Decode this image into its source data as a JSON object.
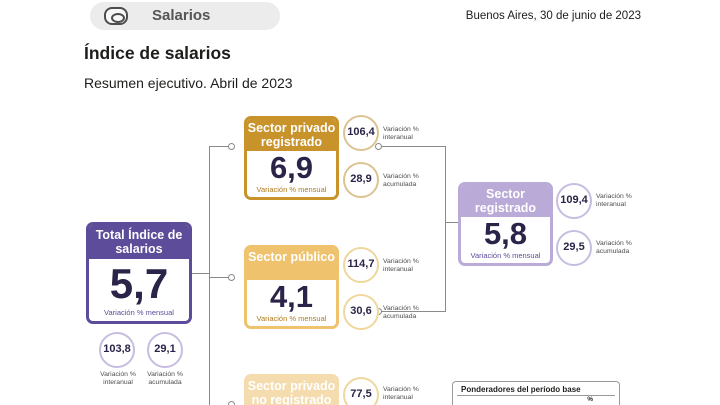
{
  "header": {
    "section_label": "Salarios",
    "section_icon": "money-icon",
    "date": "Buenos Aires, 30 de junio de 2023"
  },
  "title": "Índice de salarios",
  "subtitle": "Resumen ejecutivo. Abril de 2023",
  "total": {
    "title": "Total Índice de salarios",
    "value": "5,7",
    "caption": "Variación % mensual",
    "interanual": "103,8",
    "interanual_label": "Variación % interanual",
    "acumulada": "29,1",
    "acumulada_label": "Variación % acumulada",
    "color": "#5d4c9a"
  },
  "privado": {
    "title": "Sector privado registrado",
    "value": "6,9",
    "caption": "Variación % mensual",
    "interanual": "106,4",
    "interanual_label_1": "Variación %",
    "interanual_label_2": "interanual",
    "acumulada": "28,9",
    "acumulada_label_1": "Variación %",
    "acumulada_label_2": "acumulada",
    "color": "#c9932c"
  },
  "publico": {
    "title": "Sector público",
    "value": "4,1",
    "caption": "Variación % mensual",
    "interanual": "114,7",
    "interanual_label_1": "Variación %",
    "interanual_label_2": "interanual",
    "acumulada": "30,6",
    "acumulada_label_1": "Variación %",
    "acumulada_label_2": "acumulada",
    "color": "#efc26d"
  },
  "no_registrado": {
    "title": "Sector privado no registrado",
    "interanual": "77,5",
    "interanual_label_1": "Variación %",
    "interanual_label_2": "interanual",
    "color": "#f4dcae"
  },
  "registrado": {
    "title": "Sector registrado",
    "value": "5,8",
    "caption": "Variación % mensual",
    "interanual": "109,4",
    "interanual_label_1": "Variación %",
    "interanual_label_2": "interanual",
    "acumulada": "29,5",
    "acumulada_label_1": "Variación %",
    "acumulada_label_2": "acumulada",
    "color": "#b9aad7"
  },
  "ponderadores": {
    "title": "Ponderadores del período base",
    "unit": "%"
  }
}
